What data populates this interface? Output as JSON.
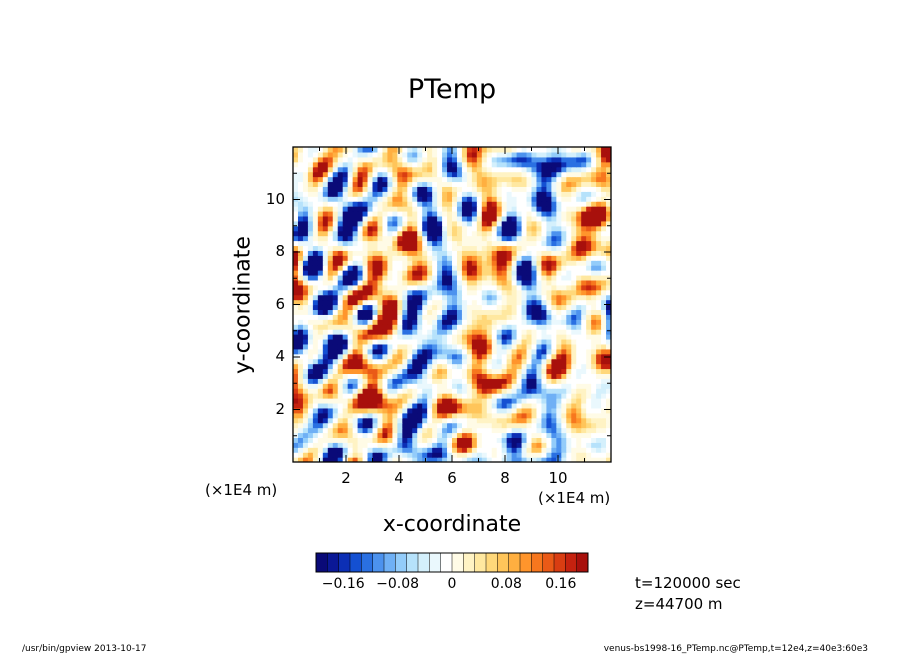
{
  "chart_data": {
    "type": "heatmap",
    "title": "PTemp",
    "xlabel": "x-coordinate",
    "ylabel": "y-coordinate",
    "x_unit": "(×1E4 m)",
    "y_unit": "(×1E4 m)",
    "xlim": [
      0,
      12
    ],
    "ylim": [
      0,
      12
    ],
    "xticks": [
      "2",
      "4",
      "6",
      "8",
      "10"
    ],
    "yticks": [
      "2",
      "4",
      "6",
      "8",
      "10"
    ],
    "colorbar": {
      "range": [
        -0.2,
        0.2
      ],
      "tick_labels": [
        "−0.16",
        "−0.08",
        "0",
        "0.08",
        "0.16"
      ],
      "colors": [
        "#0a0a78",
        "#0a1896",
        "#0c2fb5",
        "#1450d2",
        "#2a70e2",
        "#4c92ee",
        "#6fb0f5",
        "#93ccfa",
        "#b6e2fb",
        "#d4f0fc",
        "#eaf8fd",
        "#ffffff",
        "#fffbe6",
        "#fff3c4",
        "#ffe8a0",
        "#ffd87a",
        "#ffc55a",
        "#ffaf40",
        "#ff952c",
        "#f7771e",
        "#ea5a17",
        "#d93d12",
        "#c5220f",
        "#a8100c"
      ]
    },
    "annotations": [
      "t=120000 sec",
      "z=44700 m"
    ]
  },
  "footer": {
    "left": "/usr/bin/gpview   2013-10-17",
    "right": "venus-bs1998-16_PTemp.nc@PTemp,t=12e4,z=40e3:60e3"
  }
}
